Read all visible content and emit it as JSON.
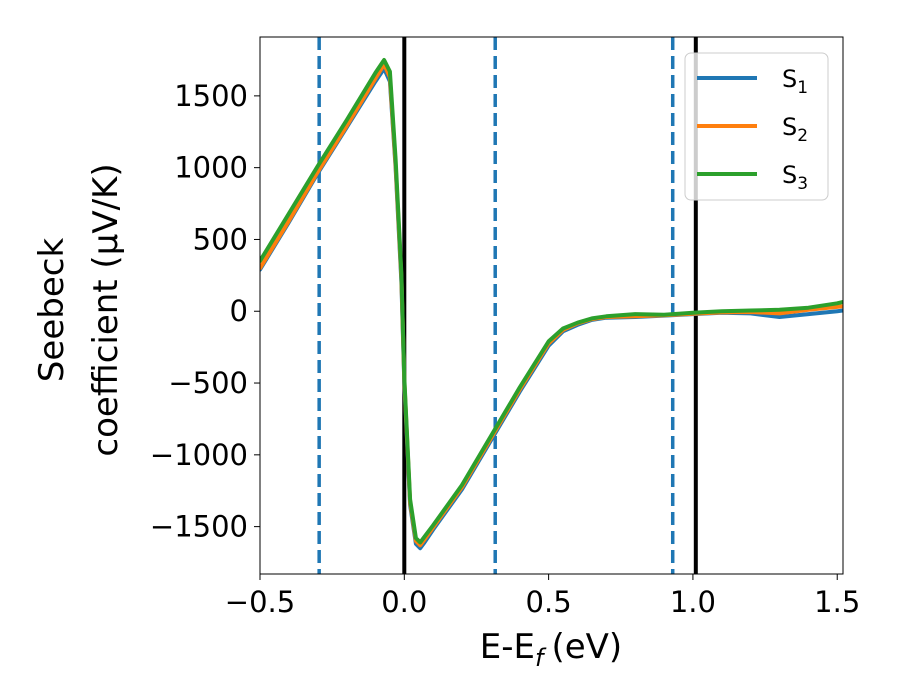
{
  "chart_data": {
    "type": "line",
    "title": "",
    "xlabel": "E-E",
    "xlabel_sub": "f",
    "xlabel_unit": "(eV)",
    "ylabel_line1": "Seebeck",
    "ylabel_line2": "coefficient  (μV/K)",
    "xlim": [
      -0.5,
      1.52
    ],
    "ylim": [
      -1830,
      1910
    ],
    "xticks": [
      -0.5,
      0.0,
      0.5,
      1.0,
      1.5
    ],
    "xtick_labels": [
      "−0.5",
      "0.0",
      "0.5",
      "1.0",
      "1.5"
    ],
    "yticks": [
      -1500,
      -1000,
      -500,
      0,
      500,
      1000,
      1500
    ],
    "ytick_labels": [
      "−1500",
      "−1000",
      "−500",
      "0",
      "500",
      "1000",
      "1500"
    ],
    "grid": false,
    "legend_position": "top-right",
    "vlines": [
      {
        "x": -0.295,
        "style": "dashed",
        "color": "#1f77b4"
      },
      {
        "x": 0.0,
        "style": "solid",
        "color": "#000000"
      },
      {
        "x": 0.315,
        "style": "dashed",
        "color": "#1f77b4"
      },
      {
        "x": 0.93,
        "style": "dashed",
        "color": "#1f77b4"
      },
      {
        "x": 1.01,
        "style": "solid",
        "color": "#000000"
      }
    ],
    "series": [
      {
        "name": "S",
        "sub": "1",
        "color": "#1f77b4",
        "x": [
          -0.5,
          -0.4,
          -0.3,
          -0.2,
          -0.1,
          -0.07,
          -0.05,
          -0.03,
          -0.01,
          0.0,
          0.02,
          0.04,
          0.055,
          0.07,
          0.1,
          0.2,
          0.3,
          0.4,
          0.5,
          0.55,
          0.6,
          0.65,
          0.7,
          0.8,
          0.9,
          1.0,
          1.1,
          1.2,
          1.3,
          1.4,
          1.5,
          1.52
        ],
        "y": [
          290,
          620,
          960,
          1280,
          1600,
          1690,
          1600,
          1000,
          200,
          -500,
          -1350,
          -1620,
          -1650,
          -1610,
          -1520,
          -1240,
          -900,
          -560,
          -240,
          -140,
          -95,
          -60,
          -45,
          -40,
          -30,
          -20,
          -10,
          -15,
          -40,
          -20,
          0,
          5
        ]
      },
      {
        "name": "S",
        "sub": "2",
        "color": "#ff7f0e",
        "x": [
          -0.5,
          -0.4,
          -0.3,
          -0.2,
          -0.1,
          -0.07,
          -0.05,
          -0.03,
          -0.01,
          0.0,
          0.02,
          0.04,
          0.055,
          0.07,
          0.1,
          0.2,
          0.3,
          0.4,
          0.5,
          0.55,
          0.6,
          0.65,
          0.7,
          0.8,
          0.9,
          1.0,
          1.1,
          1.2,
          1.3,
          1.4,
          1.5,
          1.52
        ],
        "y": [
          300,
          630,
          970,
          1290,
          1620,
          1720,
          1630,
          1020,
          230,
          -480,
          -1330,
          -1600,
          -1630,
          -1590,
          -1505,
          -1225,
          -885,
          -545,
          -225,
          -130,
          -85,
          -55,
          -40,
          -35,
          -28,
          -18,
          -8,
          -5,
          -15,
          10,
          30,
          35
        ]
      },
      {
        "name": "S",
        "sub": "3",
        "color": "#2ca02c",
        "x": [
          -0.5,
          -0.4,
          -0.3,
          -0.2,
          -0.1,
          -0.07,
          -0.05,
          -0.03,
          -0.01,
          0.0,
          0.02,
          0.04,
          0.055,
          0.07,
          0.1,
          0.2,
          0.3,
          0.4,
          0.5,
          0.55,
          0.6,
          0.65,
          0.7,
          0.8,
          0.9,
          1.0,
          1.1,
          1.2,
          1.3,
          1.4,
          1.5,
          1.52
        ],
        "y": [
          350,
          680,
          1010,
          1330,
          1660,
          1750,
          1670,
          1060,
          260,
          -460,
          -1310,
          -1580,
          -1610,
          -1570,
          -1490,
          -1210,
          -870,
          -530,
          -210,
          -120,
          -80,
          -50,
          -35,
          -20,
          -25,
          -10,
          0,
          5,
          10,
          25,
          55,
          65
        ]
      }
    ]
  }
}
